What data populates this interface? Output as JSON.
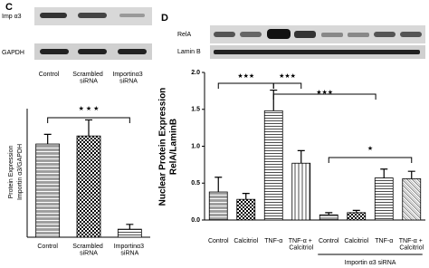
{
  "chart_data": [
    {
      "type": "bar",
      "panel": "C",
      "blot_labels": [
        "Imp α3",
        "GAPDH"
      ],
      "lane_labels": [
        "Control",
        "Scrambled siRNA",
        "Importinα3 siRNA"
      ],
      "ylabel": [
        "Protein Expression",
        "Importin α3/GAPDH"
      ],
      "categories": [
        "Control",
        "Scrambled siRNA",
        "Importinα3 siRNA"
      ],
      "values": [
        0.58,
        0.63,
        0.05
      ],
      "errors": [
        0.06,
        0.1,
        0.03
      ],
      "color": "#000000",
      "ylim": [
        0,
        0.8
      ],
      "significance": [
        "★ ★ ★"
      ]
    },
    {
      "type": "bar",
      "panel": "D",
      "blot_labels": [
        "RelA",
        "Lamin B"
      ],
      "ylabel": [
        "Nuclear Protein Expression",
        "RelA/LaminB"
      ],
      "categories": [
        "Control",
        "Calcitriol",
        "TNF-α",
        "TNF-α + Calcitriol",
        "Control",
        "Calcitriol",
        "TNF-α",
        "TNF-α + Calcitriol"
      ],
      "values": [
        0.38,
        0.28,
        1.48,
        0.77,
        0.07,
        0.1,
        0.57,
        0.56
      ],
      "errors": [
        0.2,
        0.08,
        0.28,
        0.17,
        0.03,
        0.03,
        0.12,
        0.1
      ],
      "color": "#000000",
      "ylim": [
        0,
        2.0
      ],
      "yticks": [
        {
          "value": 0,
          "label": "0.0"
        },
        {
          "value": 0.5,
          "label": "0.5"
        },
        {
          "value": 1,
          "label": "1.0"
        },
        {
          "value": 1.5,
          "label": "1.5"
        },
        {
          "value": 2,
          "label": "2.0"
        }
      ],
      "group_label": "Importin α3 siRNA",
      "significance": [
        "★★★",
        "★★★",
        "★★★",
        "★"
      ]
    }
  ]
}
